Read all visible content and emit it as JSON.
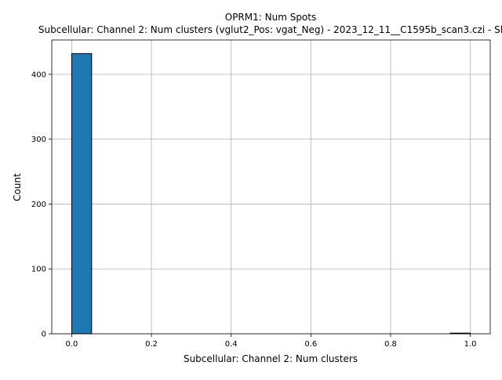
{
  "chart_data": {
    "type": "bar",
    "title": "OPRM1: Num Spots",
    "subtitle": "Subcellular: Channel 2: Num clusters (vglut2_Pos: vgat_Neg) - 2023_12_11__C1595b_scan3.czi - Sl",
    "xlabel": "Subcellular: Channel 2: Num clusters",
    "ylabel": "Count",
    "xlim": [
      -0.05,
      1.05
    ],
    "ylim": [
      0,
      453
    ],
    "grid": true,
    "xticks": [
      0.0,
      0.2,
      0.4,
      0.6,
      0.8,
      1.0
    ],
    "xtick_labels": [
      "0.0",
      "0.2",
      "0.4",
      "0.6",
      "0.8",
      "1.0"
    ],
    "yticks": [
      0,
      100,
      200,
      300,
      400
    ],
    "ytick_labels": [
      "0",
      "100",
      "200",
      "300",
      "400"
    ],
    "bins": [
      [
        0.0,
        0.05
      ],
      [
        0.05,
        0.1
      ],
      [
        0.1,
        0.15
      ],
      [
        0.15,
        0.2
      ],
      [
        0.2,
        0.25
      ],
      [
        0.25,
        0.3
      ],
      [
        0.3,
        0.35
      ],
      [
        0.35,
        0.4
      ],
      [
        0.4,
        0.45
      ],
      [
        0.45,
        0.5
      ],
      [
        0.5,
        0.55
      ],
      [
        0.55,
        0.6
      ],
      [
        0.6,
        0.65
      ],
      [
        0.65,
        0.7
      ],
      [
        0.7,
        0.75
      ],
      [
        0.75,
        0.8
      ],
      [
        0.8,
        0.85
      ],
      [
        0.85,
        0.9
      ],
      [
        0.9,
        0.95
      ],
      [
        0.95,
        1.0
      ]
    ],
    "values": [
      432,
      0,
      0,
      0,
      0,
      0,
      0,
      0,
      0,
      0,
      0,
      0,
      0,
      0,
      0,
      0,
      0,
      0,
      0,
      1
    ],
    "bar_color": "#1f77b4",
    "edge_color": "#000000"
  }
}
